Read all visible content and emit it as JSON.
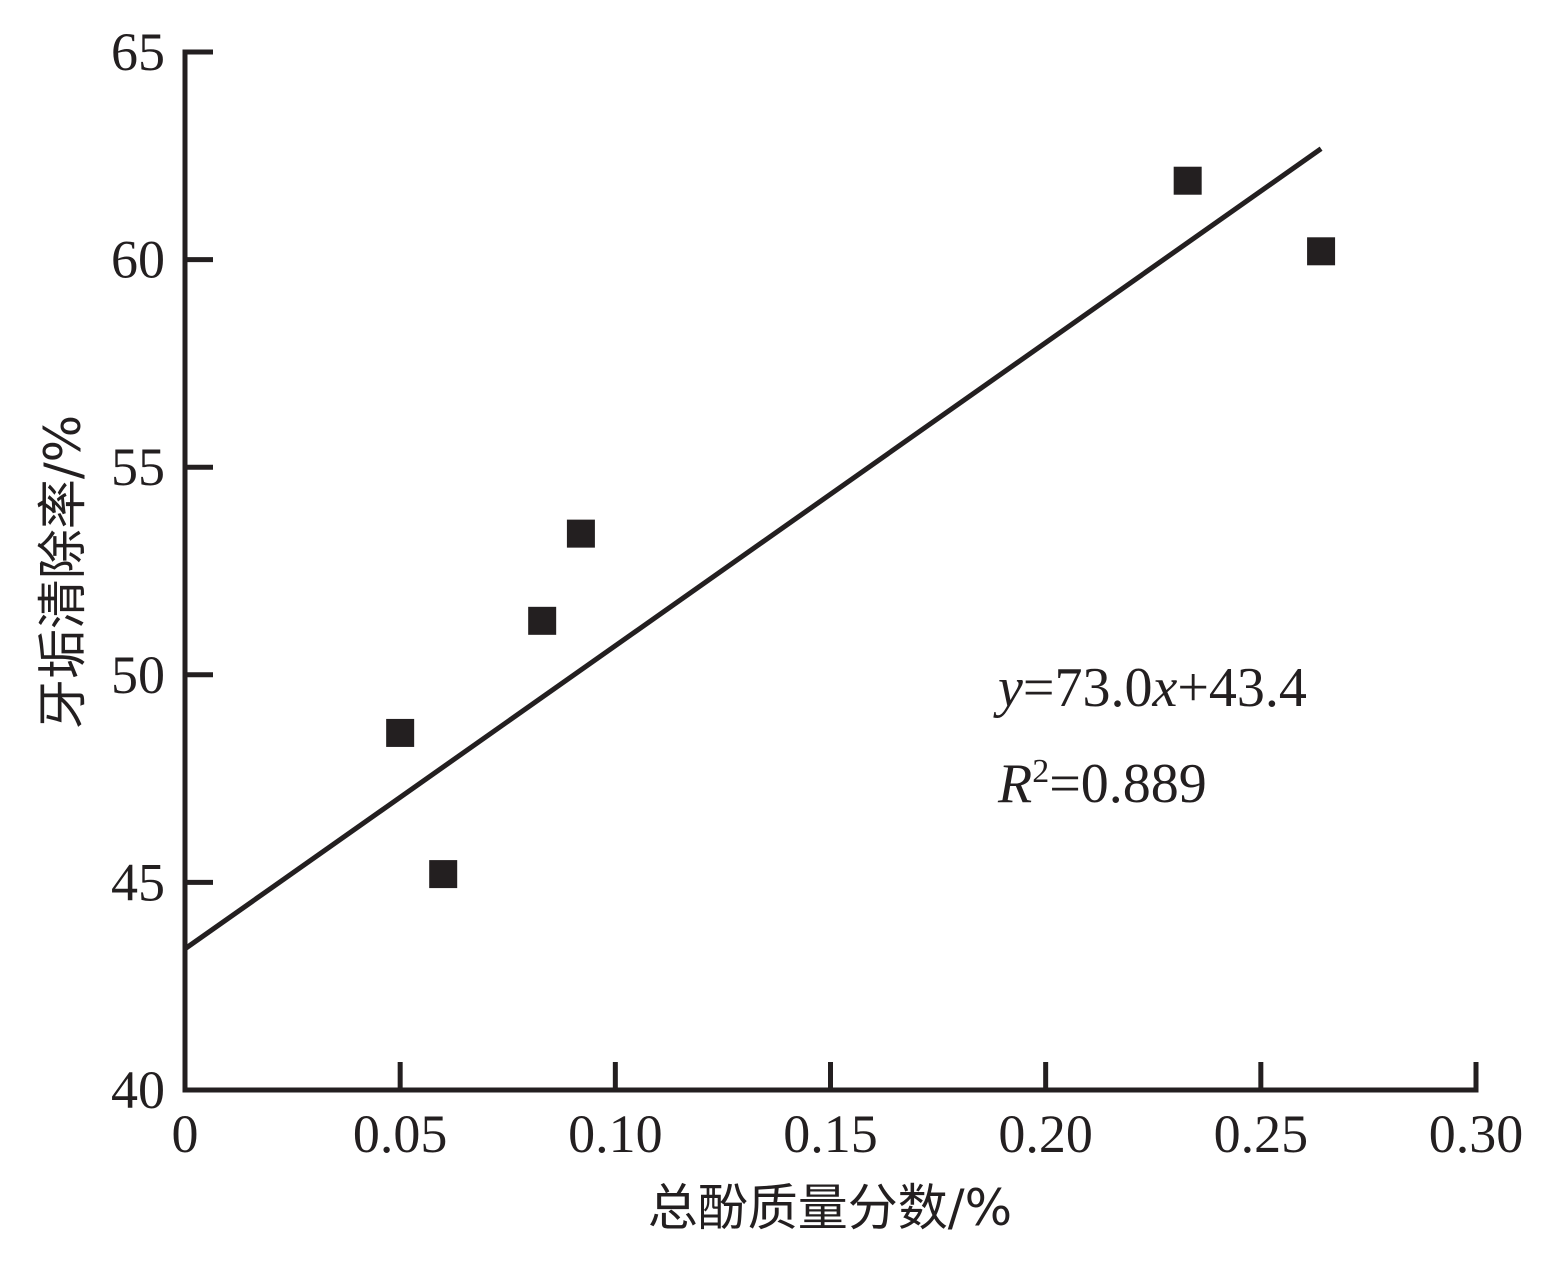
{
  "chart_data": {
    "type": "scatter",
    "xlabel": "总酚质量分数/%",
    "ylabel": "牙垢清除率/%",
    "xlim": [
      0,
      0.3
    ],
    "ylim": [
      40,
      65
    ],
    "x_ticks": [
      0,
      0.05,
      0.1,
      0.15,
      0.2,
      0.25,
      0.3
    ],
    "x_tick_labels": [
      "0",
      "0.05",
      "0.10",
      "0.15",
      "0.20",
      "0.25",
      "0.30"
    ],
    "y_ticks": [
      40,
      45,
      50,
      55,
      60,
      65
    ],
    "y_tick_labels": [
      "40",
      "45",
      "50",
      "55",
      "60",
      "65"
    ],
    "grid": false,
    "series": [
      {
        "marker": "square",
        "color": "#231f20",
        "points": [
          {
            "x": 0.05,
            "y": 48.6
          },
          {
            "x": 0.06,
            "y": 45.2
          },
          {
            "x": 0.083,
            "y": 51.3
          },
          {
            "x": 0.092,
            "y": 53.4
          },
          {
            "x": 0.233,
            "y": 61.9
          },
          {
            "x": 0.264,
            "y": 60.2
          }
        ]
      }
    ],
    "fit_line": {
      "slope": 73.0,
      "intercept": 43.4,
      "x_range": [
        0,
        0.264
      ],
      "color": "#231f20"
    },
    "annotation": {
      "equation": {
        "y_var": "y",
        "eq_coef": "=73.0",
        "x_var": "x",
        "eq_rest": "+43.4"
      },
      "r2": {
        "var": "R",
        "sup": "2",
        "value": "=0.889"
      }
    }
  }
}
